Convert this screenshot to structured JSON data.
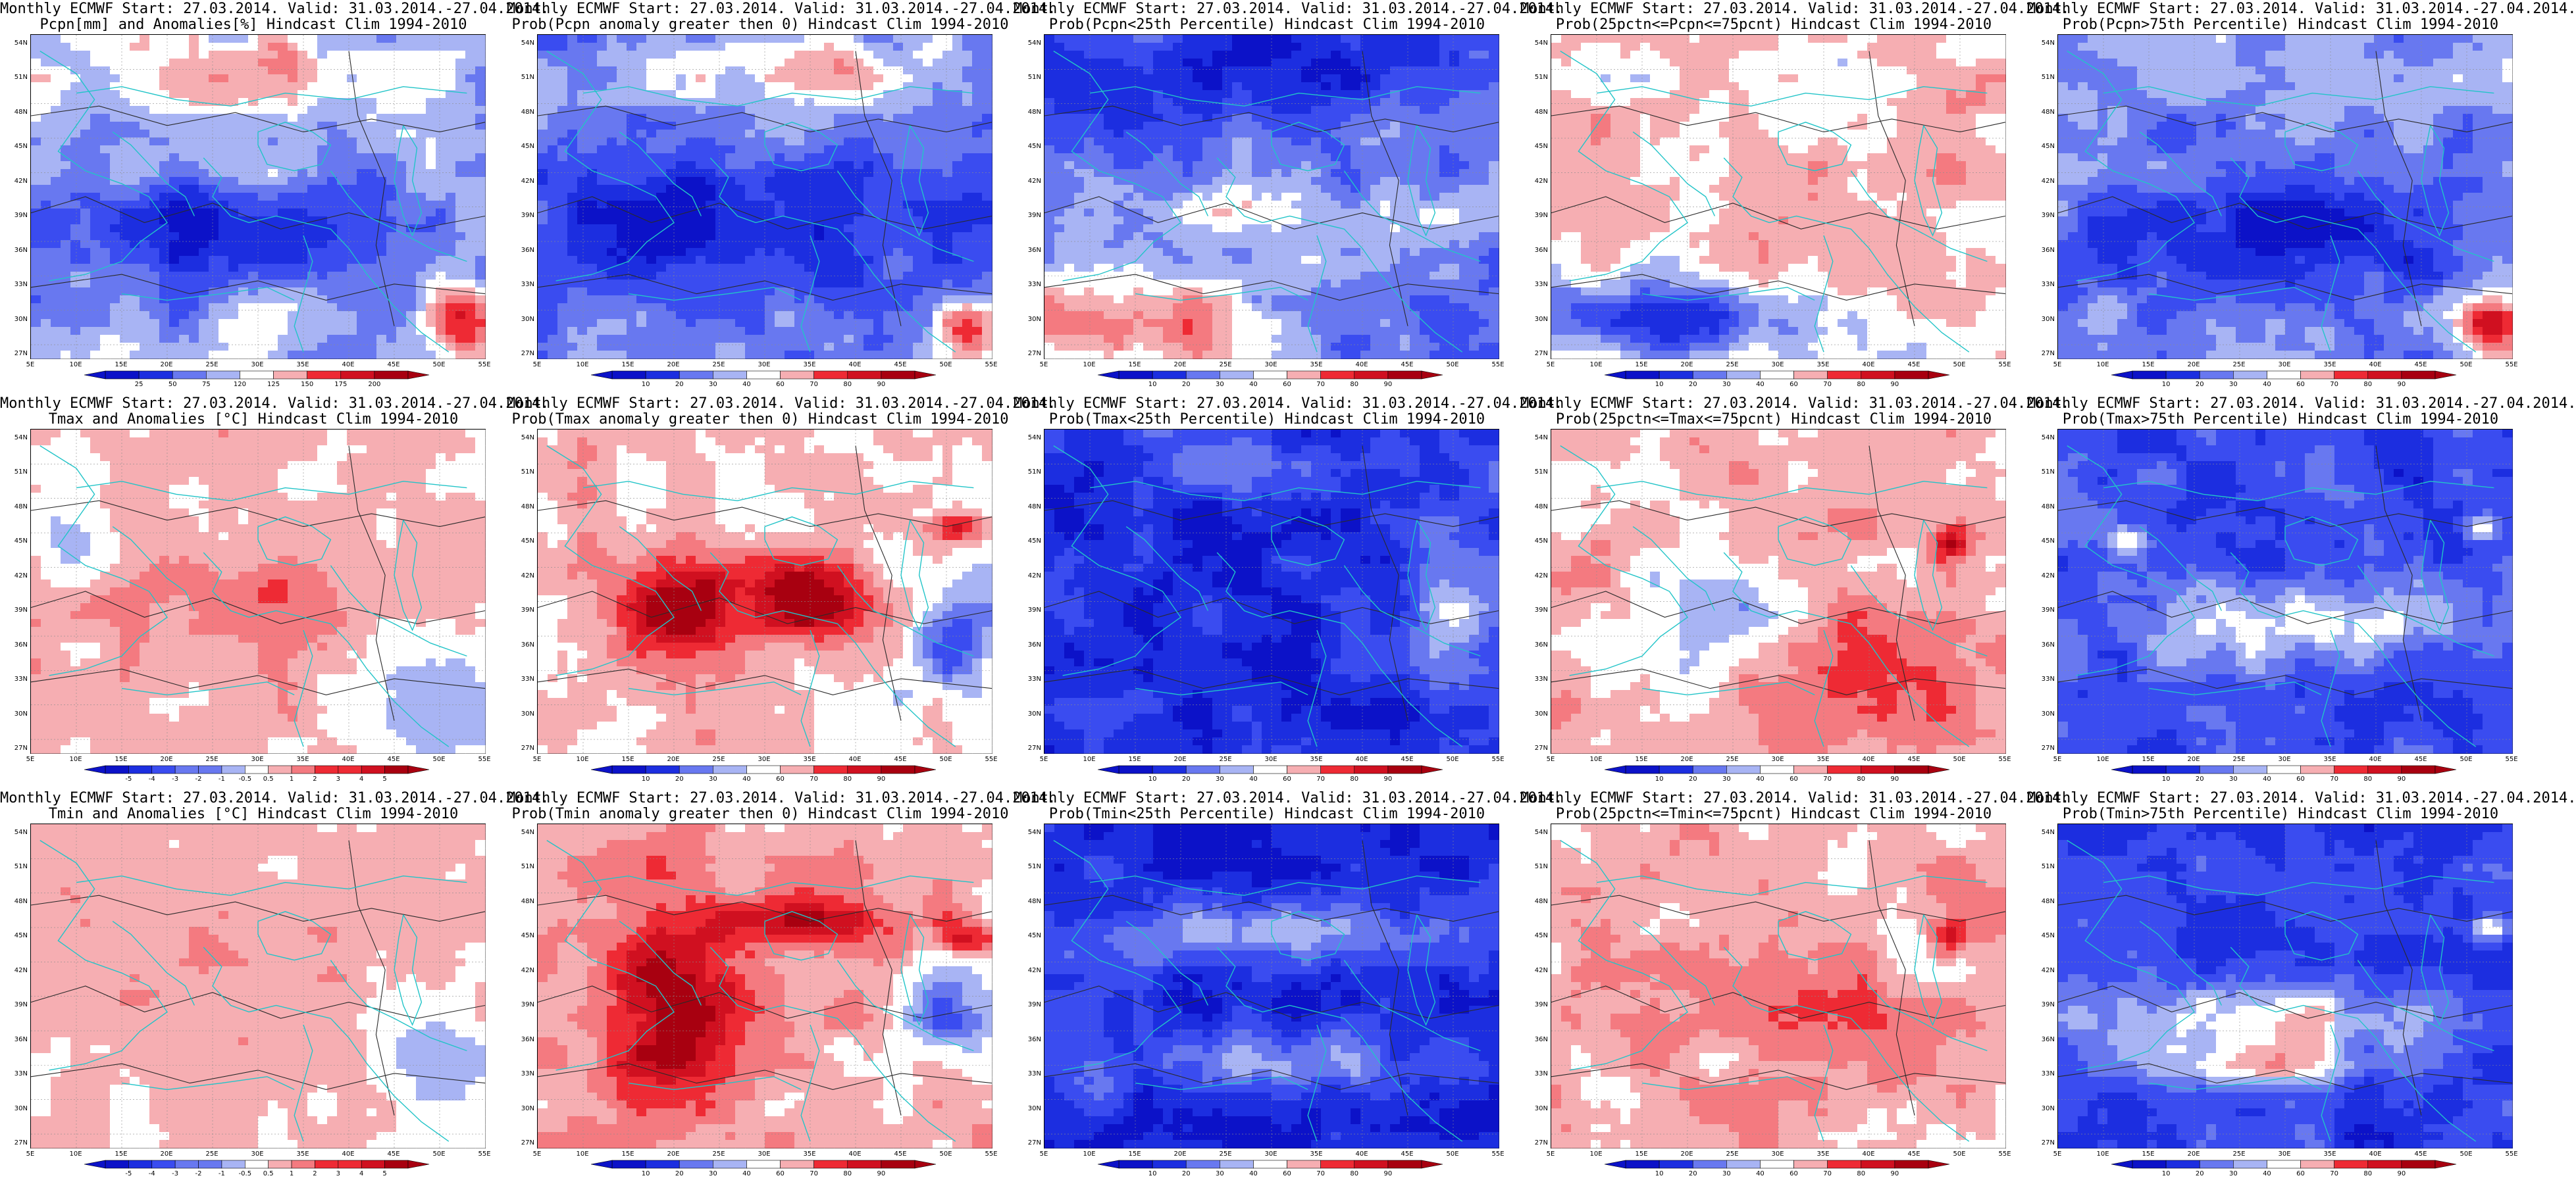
{
  "panel_title_prefix": "Monthly ECMWF Start: 27.03.2014. Valid: 31.03.2014.-27.04.2014.",
  "lat_labels": [
    "54N",
    "51N",
    "48N",
    "45N",
    "42N",
    "39N",
    "36N",
    "33N",
    "30N",
    "27N"
  ],
  "lon_labels": [
    "5E",
    "10E",
    "15E",
    "20E",
    "25E",
    "30E",
    "35E",
    "40E",
    "45E",
    "50E",
    "55E"
  ],
  "colors": {
    "land_outline": "#22c4c8",
    "contour": "#2a2a2a",
    "deep_blue": "#0c12c8",
    "blue": "#3a4cf0",
    "light_blue": "#a8b4f4",
    "white": "#ffffff",
    "light_red": "#f6aeb2",
    "red": "#ee2a34",
    "deep_red": "#a80010"
  },
  "panels": [
    {
      "line1": "Monthly ECMWF Start: 27.03.2014. Valid: 31.03.2014.-27.04.2014.",
      "line2": "Pcpn[mm] and Anomalies[%] Hindcast Clim 1994-2010",
      "pattern": "pcpn_anom",
      "colorbar": [
        "25",
        "50",
        "75",
        "120",
        "125",
        "150",
        "175",
        "200"
      ]
    },
    {
      "line1": "Monthly ECMWF Start: 27.03.2014. Valid: 31.03.2014.-27.04.2014.",
      "line2": "Prob(Pcpn anomaly greater then 0) Hindcast Clim 1994-2010",
      "pattern": "pcpn_prob",
      "colorbar": [
        "10",
        "20",
        "30",
        "40",
        "60",
        "70",
        "80",
        "90"
      ]
    },
    {
      "line1": "Monthly ECMWF Start: 27.03.2014. Valid: 31.03.2014.-27.04.2014.",
      "line2": "Prob(Pcpn<25th Percentile) Hindcast Clim 1994-2010",
      "pattern": "pcpn_low",
      "colorbar": [
        "10",
        "20",
        "30",
        "40",
        "60",
        "70",
        "80",
        "90"
      ]
    },
    {
      "line1": "Monthly ECMWF Start: 27.03.2014. Valid: 31.03.2014.-27.04.2014.",
      "line2": "Prob(25pctn<=Pcpn<=75pcnt) Hindcast Clim 1994-2010",
      "pattern": "pcpn_mid",
      "colorbar": [
        "10",
        "20",
        "30",
        "40",
        "60",
        "70",
        "80",
        "90"
      ]
    },
    {
      "line1": "Monthly ECMWF Start: 27.03.2014. Valid: 31.03.2014.-27.04.2014.",
      "line2": "Prob(Pcpn>75th Percentile) Hindcast Clim 1994-2010",
      "pattern": "pcpn_high",
      "colorbar": [
        "10",
        "20",
        "30",
        "40",
        "60",
        "70",
        "80",
        "90"
      ]
    },
    {
      "line1": "Monthly ECMWF Start: 27.03.2014. Valid: 31.03.2014.-27.04.2014.",
      "line2": "Tmax and Anomalies [°C] Hindcast Clim 1994-2010",
      "pattern": "t_anom",
      "colorbar": [
        "-5",
        "-4",
        "-3",
        "-2",
        "-1",
        "-0.5",
        "0.5",
        "1",
        "2",
        "3",
        "4",
        "5"
      ]
    },
    {
      "line1": "Monthly ECMWF Start: 27.03.2014. Valid: 31.03.2014.-27.04.2014.",
      "line2": "Prob(Tmax anomaly greater then 0) Hindcast Clim 1994-2010",
      "pattern": "t_prob",
      "colorbar": [
        "10",
        "20",
        "30",
        "40",
        "60",
        "70",
        "80",
        "90"
      ]
    },
    {
      "line1": "Monthly ECMWF Start: 27.03.2014. Valid: 31.03.2014.-27.04.2014.",
      "line2": "Prob(Tmax<25th Percentile) Hindcast Clim 1994-2010",
      "pattern": "t_low",
      "colorbar": [
        "10",
        "20",
        "30",
        "40",
        "60",
        "70",
        "80",
        "90"
      ]
    },
    {
      "line1": "Monthly ECMWF Start: 27.03.2014. Valid: 31.03.2014.-27.04.2014.",
      "line2": "Prob(25pctn<=Tmax<=75pcnt) Hindcast Clim 1994-2010",
      "pattern": "t_mid",
      "colorbar": [
        "10",
        "20",
        "30",
        "40",
        "60",
        "70",
        "80",
        "90"
      ]
    },
    {
      "line1": "Monthly ECMWF Start: 27.03.2014. Valid: 31.03.2014.-27.04.2014.",
      "line2": "Prob(Tmax>75th Percentile) Hindcast Clim 1994-2010",
      "pattern": "t_high",
      "colorbar": [
        "10",
        "20",
        "30",
        "40",
        "60",
        "70",
        "80",
        "90"
      ]
    },
    {
      "line1": "Monthly ECMWF Start: 27.03.2014. Valid: 31.03.2014.-27.04.2014.",
      "line2": "Tmin and Anomalies [°C] Hindcast Clim 1994-2010",
      "pattern": "tn_anom",
      "colorbar": [
        "-5",
        "-4",
        "-3",
        "-2",
        "-1",
        "-0.5",
        "0.5",
        "1",
        "2",
        "3",
        "4",
        "5"
      ]
    },
    {
      "line1": "Monthly ECMWF Start: 27.03.2014. Valid: 31.03.2014.-27.04.2014.",
      "line2": "Prob(Tmin anomaly greater then 0) Hindcast Clim 1994-2010",
      "pattern": "tn_prob",
      "colorbar": [
        "10",
        "20",
        "30",
        "40",
        "60",
        "70",
        "80",
        "90"
      ]
    },
    {
      "line1": "Monthly ECMWF Start: 27.03.2014. Valid: 31.03.2014.-27.04.2014.",
      "line2": "Prob(Tmin<25th Percentile) Hindcast Clim 1994-2010",
      "pattern": "tn_low",
      "colorbar": [
        "10",
        "20",
        "30",
        "40",
        "60",
        "70",
        "80",
        "90"
      ]
    },
    {
      "line1": "Monthly ECMWF Start: 27.03.2014. Valid: 31.03.2014.-27.04.2014.",
      "line2": "Prob(25pctn<=Tmin<=75pcnt) Hindcast Clim 1994-2010",
      "pattern": "tn_mid",
      "colorbar": [
        "10",
        "20",
        "30",
        "40",
        "60",
        "70",
        "80",
        "90"
      ]
    },
    {
      "line1": "Monthly ECMWF Start: 27.03.2014. Valid: 31.03.2014.-27.04.2014.",
      "line2": "Prob(Tmin>75th Percentile) Hindcast Clim 1994-2010",
      "pattern": "tn_high",
      "colorbar": [
        "10",
        "20",
        "30",
        "40",
        "60",
        "70",
        "80",
        "90"
      ]
    }
  ]
}
